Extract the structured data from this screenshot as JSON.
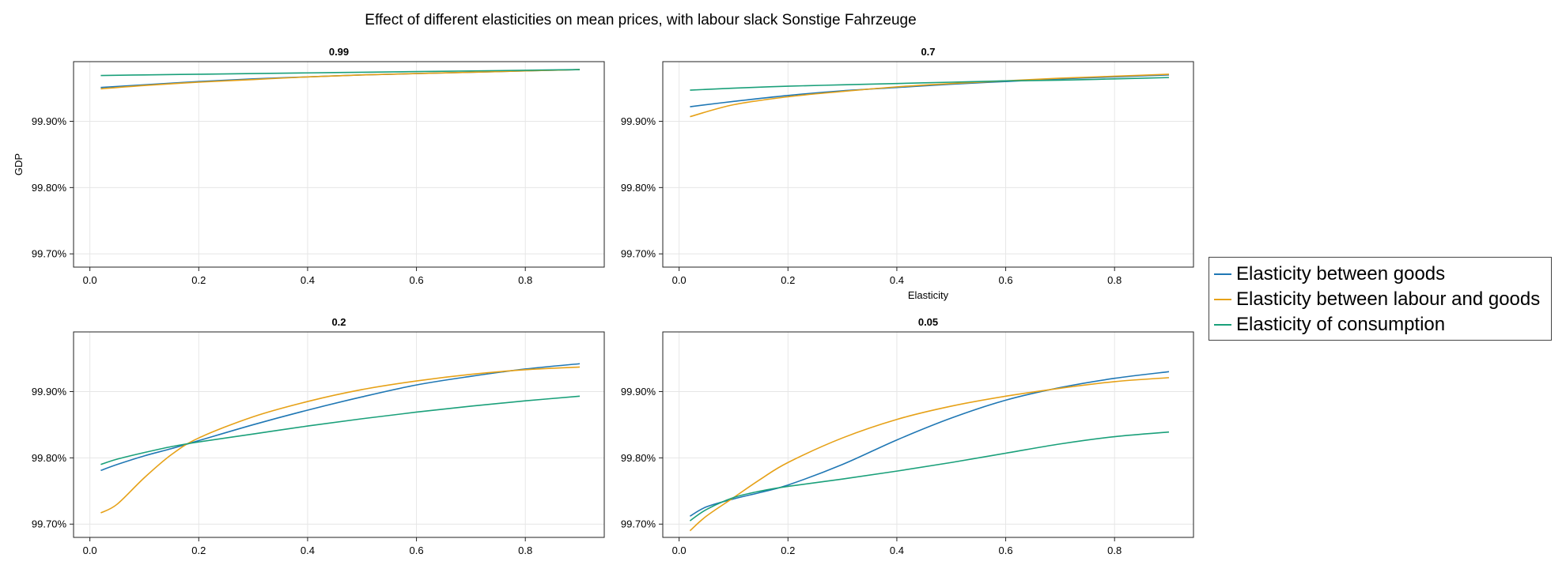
{
  "figure": {
    "title": "Effect of different elasticities on mean prices, with labour slack Sonstige Fahrzeuge"
  },
  "legend": {
    "items": [
      {
        "label": "Elasticity between goods",
        "color": "#1f77b4"
      },
      {
        "label": "Elasticity between labour and goods",
        "color": "#e6a117"
      },
      {
        "label": "Elasticity of consumption",
        "color": "#1aa07a"
      }
    ]
  },
  "chart_data": [
    {
      "type": "line",
      "title": "0.99",
      "xlabel": "",
      "ylabel": "GDP",
      "xlim": [
        -0.03,
        0.945
      ],
      "ylim": [
        99.68,
        99.99
      ],
      "xticks": [
        0.0,
        0.2,
        0.4,
        0.6,
        0.8
      ],
      "xtick_labels": [
        "0.0",
        "0.2",
        "0.4",
        "0.6",
        "0.8"
      ],
      "yticks": [
        99.7,
        99.8,
        99.9
      ],
      "ytick_labels": [
        "99.70%",
        "99.80%",
        "99.90%"
      ],
      "grid": true,
      "x": [
        0.02,
        0.1,
        0.2,
        0.3,
        0.4,
        0.5,
        0.6,
        0.7,
        0.8,
        0.9
      ],
      "series": [
        {
          "name": "Elasticity between goods",
          "color": "#1f77b4",
          "values": [
            99.951,
            99.955,
            99.96,
            99.964,
            99.967,
            99.97,
            99.972,
            99.974,
            99.976,
            99.978
          ]
        },
        {
          "name": "Elasticity between labour and goods",
          "color": "#e6a117",
          "values": [
            99.949,
            99.954,
            99.959,
            99.963,
            99.967,
            99.97,
            99.972,
            99.974,
            99.976,
            99.978
          ]
        },
        {
          "name": "Elasticity of consumption",
          "color": "#1aa07a",
          "values": [
            99.969,
            99.97,
            99.971,
            99.972,
            99.973,
            99.974,
            99.975,
            99.976,
            99.977,
            99.978
          ]
        }
      ]
    },
    {
      "type": "line",
      "title": "0.7",
      "xlabel": "Elasticity",
      "ylabel": "",
      "xlim": [
        -0.03,
        0.945
      ],
      "ylim": [
        99.68,
        99.99
      ],
      "xticks": [
        0.0,
        0.2,
        0.4,
        0.6,
        0.8
      ],
      "xtick_labels": [
        "0.0",
        "0.2",
        "0.4",
        "0.6",
        "0.8"
      ],
      "yticks": [
        99.7,
        99.8,
        99.9
      ],
      "ytick_labels": [
        "99.70%",
        "99.80%",
        "99.90%"
      ],
      "grid": true,
      "x": [
        0.02,
        0.1,
        0.2,
        0.3,
        0.4,
        0.5,
        0.6,
        0.7,
        0.8,
        0.9
      ],
      "series": [
        {
          "name": "Elasticity between goods",
          "color": "#1f77b4",
          "values": [
            99.922,
            99.93,
            99.939,
            99.946,
            99.951,
            99.956,
            99.96,
            99.964,
            99.967,
            99.97
          ]
        },
        {
          "name": "Elasticity between labour and goods",
          "color": "#e6a117",
          "values": [
            99.907,
            99.925,
            99.937,
            99.945,
            99.952,
            99.957,
            99.961,
            99.965,
            99.968,
            99.971
          ]
        },
        {
          "name": "Elasticity of consumption",
          "color": "#1aa07a",
          "values": [
            99.947,
            99.95,
            99.953,
            99.955,
            99.957,
            99.959,
            99.961,
            99.962,
            99.964,
            99.966
          ]
        }
      ]
    },
    {
      "type": "line",
      "title": "0.2",
      "xlabel": "",
      "ylabel": "",
      "xlim": [
        -0.03,
        0.945
      ],
      "ylim": [
        99.68,
        99.99
      ],
      "xticks": [
        0.0,
        0.2,
        0.4,
        0.6,
        0.8
      ],
      "xtick_labels": [
        "0.0",
        "0.2",
        "0.4",
        "0.6",
        "0.8"
      ],
      "yticks": [
        99.7,
        99.8,
        99.9
      ],
      "ytick_labels": [
        "99.70%",
        "99.80%",
        "99.90%"
      ],
      "grid": true,
      "x": [
        0.02,
        0.05,
        0.1,
        0.15,
        0.2,
        0.3,
        0.4,
        0.5,
        0.6,
        0.7,
        0.8,
        0.9
      ],
      "series": [
        {
          "name": "Elasticity between goods",
          "color": "#1f77b4",
          "values": [
            99.781,
            99.79,
            99.803,
            99.814,
            99.826,
            99.85,
            99.872,
            99.892,
            99.91,
            99.923,
            99.934,
            99.942
          ]
        },
        {
          "name": "Elasticity between labour and goods",
          "color": "#e6a117",
          "values": [
            99.717,
            99.73,
            99.77,
            99.805,
            99.83,
            99.862,
            99.885,
            99.903,
            99.916,
            99.926,
            99.933,
            99.937
          ]
        },
        {
          "name": "Elasticity of consumption",
          "color": "#1aa07a",
          "values": [
            99.79,
            99.798,
            99.808,
            99.817,
            99.824,
            99.836,
            99.848,
            99.859,
            99.869,
            99.878,
            99.886,
            99.893
          ]
        }
      ]
    },
    {
      "type": "line",
      "title": "0.05",
      "xlabel": "",
      "ylabel": "",
      "xlim": [
        -0.03,
        0.945
      ],
      "ylim": [
        99.68,
        99.99
      ],
      "xticks": [
        0.0,
        0.2,
        0.4,
        0.6,
        0.8
      ],
      "xtick_labels": [
        "0.0",
        "0.2",
        "0.4",
        "0.6",
        "0.8"
      ],
      "yticks": [
        99.7,
        99.8,
        99.9
      ],
      "ytick_labels": [
        "99.70%",
        "99.80%",
        "99.90%"
      ],
      "grid": true,
      "x": [
        0.02,
        0.05,
        0.1,
        0.15,
        0.2,
        0.3,
        0.4,
        0.5,
        0.6,
        0.7,
        0.8,
        0.9
      ],
      "series": [
        {
          "name": "Elasticity between goods",
          "color": "#1f77b4",
          "values": [
            99.712,
            99.726,
            99.738,
            99.748,
            99.759,
            99.79,
            99.827,
            99.86,
            99.887,
            99.906,
            99.92,
            99.93
          ]
        },
        {
          "name": "Elasticity between labour and goods",
          "color": "#e6a117",
          "values": [
            99.69,
            99.712,
            99.74,
            99.768,
            99.793,
            99.83,
            99.858,
            99.878,
            99.893,
            99.905,
            99.915,
            99.921
          ]
        },
        {
          "name": "Elasticity of consumption",
          "color": "#1aa07a",
          "values": [
            99.705,
            99.722,
            99.74,
            99.75,
            99.757,
            99.768,
            99.78,
            99.793,
            99.807,
            99.821,
            99.832,
            99.839
          ]
        }
      ]
    }
  ]
}
